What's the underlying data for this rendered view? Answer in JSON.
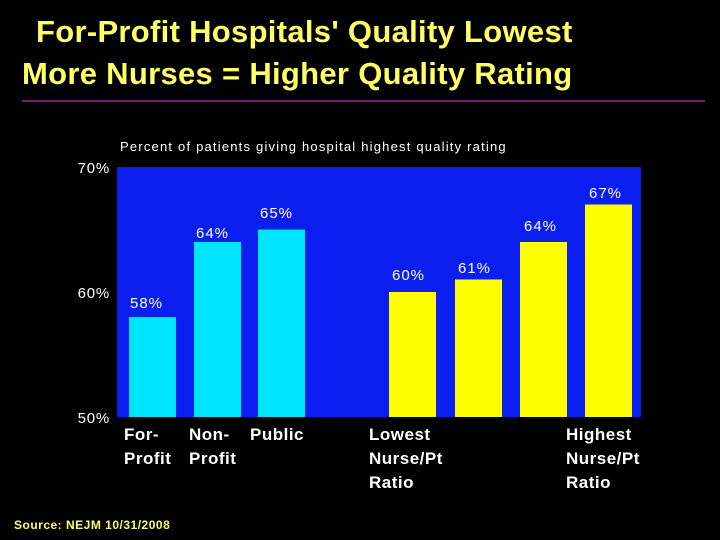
{
  "title": {
    "line1": "For-Profit Hospitals' Quality Lowest",
    "line2": "More Nurses = Higher Quality Rating"
  },
  "source": "Source: NEJM 10/31/2008",
  "colors": {
    "background": "#000000",
    "plot_area": "#0A1EF0",
    "cyan_bars": "#00E5FF",
    "yellow_bars": "#FFFF00",
    "title_text": "#FFFF66",
    "tick_text": "#FFFFFF",
    "rule": "#7A1A7A"
  },
  "chart_data": {
    "type": "bar",
    "title": "Percent of patients giving hospital highest quality rating",
    "ylim": [
      50,
      70
    ],
    "yticks": [
      "50%",
      "60%",
      "70%"
    ],
    "grid": false,
    "groups": [
      {
        "color": "cyan",
        "categories": [
          [
            "For-",
            "Profit"
          ],
          [
            "Non-",
            "Profit"
          ],
          [
            "Public"
          ]
        ],
        "values": [
          58,
          64,
          65
        ],
        "labels": [
          "58%",
          "64%",
          "65%"
        ]
      },
      {
        "color": "yellow",
        "categories": [
          [
            "Lowest",
            "Nurse/Pt",
            "Ratio"
          ],
          [],
          [],
          [
            "Highest",
            "Nurse/Pt",
            "Ratio"
          ]
        ],
        "values": [
          60,
          61,
          64,
          67
        ],
        "labels": [
          "60%",
          "61%",
          "64%",
          "67%"
        ]
      }
    ]
  }
}
